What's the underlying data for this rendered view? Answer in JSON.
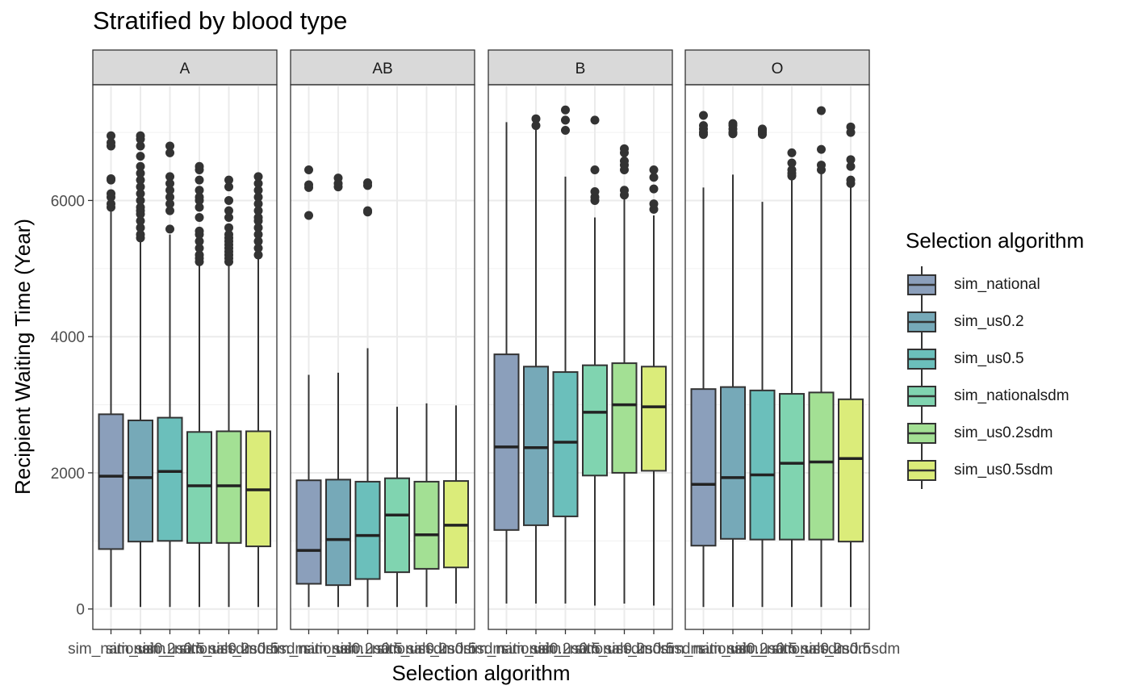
{
  "chart_data": {
    "type": "boxplot",
    "title": "Stratified by blood type",
    "xlabel": "Selection algorithm",
    "ylabel": "Recipient Waiting Time (Year)",
    "ylim": [
      -300,
      7700
    ],
    "yticks": [
      0,
      2000,
      4000,
      6000
    ],
    "grid": true,
    "legend": {
      "title": "Selection algorithm",
      "position": "right"
    },
    "categories": [
      "sim_national",
      "sim_us0.2",
      "sim_us0.5",
      "sim_nationalsdm",
      "sim_us0.2sdm",
      "sim_us0.5sdm"
    ],
    "colors": [
      "#8b9fbb",
      "#76a9b8",
      "#6bbfbb",
      "#80d4b0",
      "#a3e094",
      "#dbec7a"
    ],
    "facets": [
      {
        "label": "A",
        "boxes": [
          {
            "min": 30,
            "q1": 880,
            "median": 1950,
            "q3": 2860,
            "max": 5900,
            "outliers": [
              5900,
              5950,
              6050,
              6100,
              6300,
              6320,
              6800,
              6850,
              6950
            ]
          },
          {
            "min": 30,
            "q1": 990,
            "median": 1930,
            "q3": 2770,
            "max": 5400,
            "outliers": [
              5450,
              5500,
              5600,
              5700,
              5800,
              5850,
              5900,
              6000,
              6100,
              6200,
              6300,
              6400,
              6500,
              6650,
              6800,
              6900,
              6950
            ]
          },
          {
            "min": 30,
            "q1": 1000,
            "median": 2020,
            "q3": 2810,
            "max": 5500,
            "outliers": [
              5580,
              5850,
              5950,
              6050,
              6150,
              6250,
              6350,
              6700,
              6800
            ]
          },
          {
            "min": 30,
            "q1": 970,
            "median": 1810,
            "q3": 2600,
            "max": 5050,
            "outliers": [
              5100,
              5150,
              5200,
              5300,
              5400,
              5500,
              5550,
              5750,
              5900,
              6000,
              6050,
              6150,
              6300,
              6450,
              6500
            ]
          },
          {
            "min": 30,
            "q1": 970,
            "median": 1810,
            "q3": 2610,
            "max": 5050,
            "outliers": [
              5100,
              5150,
              5200,
              5250,
              5300,
              5350,
              5400,
              5450,
              5500,
              5600,
              5750,
              5850,
              6000,
              6200,
              6300
            ]
          },
          {
            "min": 30,
            "q1": 920,
            "median": 1750,
            "q3": 2610,
            "max": 5150,
            "outliers": [
              5200,
              5300,
              5400,
              5500,
              5600,
              5700,
              5750,
              5850,
              5950,
              6050,
              6150,
              6250,
              6350
            ]
          }
        ]
      },
      {
        "label": "AB",
        "boxes": [
          {
            "min": 30,
            "q1": 370,
            "median": 860,
            "q3": 1890,
            "max": 3440,
            "outliers": [
              5780,
              6190,
              6230,
              6450
            ]
          },
          {
            "min": 30,
            "q1": 350,
            "median": 1020,
            "q3": 1900,
            "max": 3470,
            "outliers": [
              6200,
              6250,
              6330
            ]
          },
          {
            "min": 30,
            "q1": 440,
            "median": 1080,
            "q3": 1870,
            "max": 3830,
            "outliers": [
              5830,
              5850,
              6220,
              6260
            ]
          },
          {
            "min": 30,
            "q1": 540,
            "median": 1380,
            "q3": 1920,
            "max": 2970,
            "outliers": []
          },
          {
            "min": 30,
            "q1": 590,
            "median": 1090,
            "q3": 1870,
            "max": 3020,
            "outliers": []
          },
          {
            "min": 80,
            "q1": 610,
            "median": 1230,
            "q3": 1880,
            "max": 2990,
            "outliers": []
          }
        ]
      },
      {
        "label": "B",
        "boxes": [
          {
            "min": 80,
            "q1": 1160,
            "median": 2380,
            "q3": 3740,
            "max": 7150,
            "outliers": []
          },
          {
            "min": 80,
            "q1": 1230,
            "median": 2370,
            "q3": 3560,
            "max": 7050,
            "outliers": [
              7100,
              7200
            ]
          },
          {
            "min": 80,
            "q1": 1360,
            "median": 2450,
            "q3": 3480,
            "max": 6350,
            "outliers": [
              7030,
              7180,
              7330
            ]
          },
          {
            "min": 50,
            "q1": 1960,
            "median": 2890,
            "q3": 3580,
            "max": 5750,
            "outliers": [
              6000,
              6050,
              6130,
              6450,
              7180
            ]
          },
          {
            "min": 80,
            "q1": 2000,
            "median": 3000,
            "q3": 3610,
            "max": 6030,
            "outliers": [
              6080,
              6150,
              6450,
              6520,
              6580,
              6700,
              6760
            ]
          },
          {
            "min": 50,
            "q1": 2030,
            "median": 2970,
            "q3": 3560,
            "max": 5780,
            "outliers": [
              5870,
              5950,
              6170,
              6340,
              6450
            ]
          }
        ]
      },
      {
        "label": "O",
        "boxes": [
          {
            "min": 30,
            "q1": 930,
            "median": 1830,
            "q3": 3230,
            "max": 6190,
            "outliers": [
              6970,
              7000,
              7050,
              7100,
              7250
            ]
          },
          {
            "min": 30,
            "q1": 1030,
            "median": 1930,
            "q3": 3260,
            "max": 6380,
            "outliers": [
              6980,
              7000,
              7050,
              7100,
              7130
            ]
          },
          {
            "min": 30,
            "q1": 1020,
            "median": 1970,
            "q3": 3210,
            "max": 5980,
            "outliers": [
              6970,
              7000,
              7030,
              7050
            ]
          },
          {
            "min": 30,
            "q1": 1020,
            "median": 2140,
            "q3": 3160,
            "max": 6340,
            "outliers": [
              6360,
              6400,
              6450,
              6550,
              6700
            ]
          },
          {
            "min": 30,
            "q1": 1020,
            "median": 2160,
            "q3": 3180,
            "max": 6400,
            "outliers": [
              6450,
              6520,
              6750,
              7320
            ]
          },
          {
            "min": 30,
            "q1": 990,
            "median": 2210,
            "q3": 3080,
            "max": 6230,
            "outliers": [
              6250,
              6300,
              6500,
              6600,
              7000,
              7080
            ]
          }
        ]
      }
    ]
  }
}
